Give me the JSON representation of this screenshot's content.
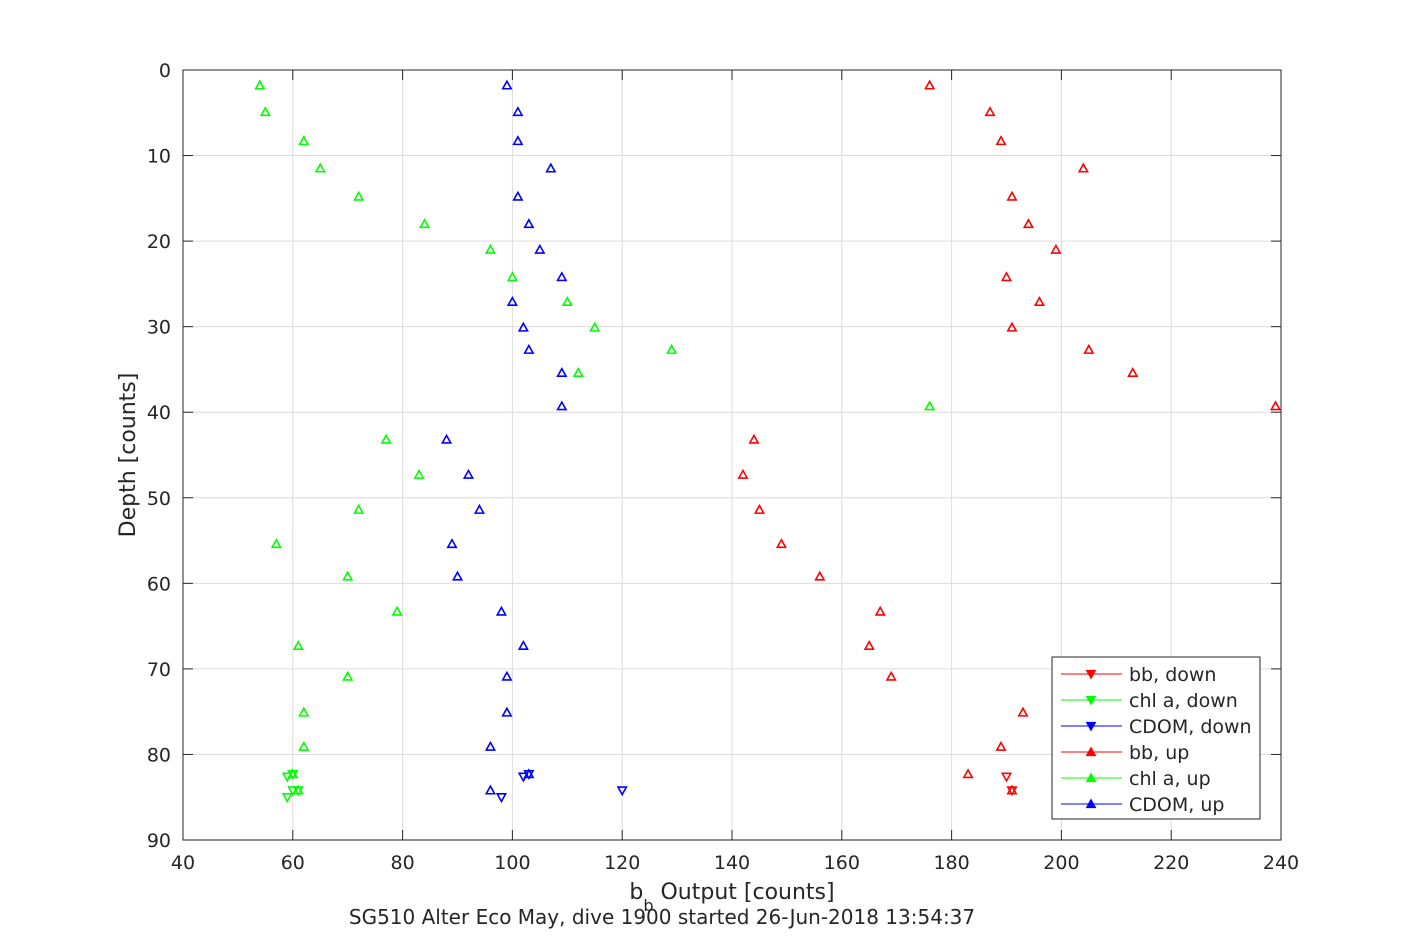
{
  "chart_data": {
    "type": "scatter",
    "title": "SG510 Alter Eco May, dive 1900 started 26-Jun-2018 13:54:37",
    "xlabel": {
      "base": "b",
      "sub": "b",
      "rest": " Output [counts]"
    },
    "ylabel": "Depth [counts]",
    "xlim": [
      40,
      240
    ],
    "ylim": [
      0,
      90
    ],
    "y_reversed": true,
    "xticks": [
      40,
      60,
      80,
      100,
      120,
      140,
      160,
      180,
      200,
      220,
      240
    ],
    "yticks": [
      0,
      10,
      20,
      30,
      40,
      50,
      60,
      70,
      80,
      90
    ],
    "grid": true,
    "legend_position": "bottom-right",
    "series": [
      {
        "name": "bb, down",
        "color": "#ff0000",
        "marker": "triangle-down",
        "points": [
          [
            190,
            82.6
          ],
          [
            191,
            84.2
          ]
        ]
      },
      {
        "name": "chl a, down",
        "color": "#00ff00",
        "marker": "triangle-down",
        "points": [
          [
            59,
            82.6
          ],
          [
            60,
            82.3
          ],
          [
            60,
            84.2
          ],
          [
            61,
            84.2
          ],
          [
            59,
            85.0
          ]
        ]
      },
      {
        "name": "CDOM, down",
        "color": "#0000ff",
        "marker": "triangle-down",
        "points": [
          [
            102,
            82.6
          ],
          [
            103,
            82.3
          ],
          [
            120,
            84.2
          ],
          [
            98,
            85.0
          ]
        ]
      },
      {
        "name": "bb, up",
        "color": "#ff0000",
        "marker": "triangle-up",
        "points": [
          [
            176,
            1.8
          ],
          [
            187,
            4.9
          ],
          [
            189,
            8.3
          ],
          [
            204,
            11.5
          ],
          [
            191,
            14.8
          ],
          [
            194,
            18.0
          ],
          [
            199,
            21.0
          ],
          [
            190,
            24.2
          ],
          [
            196,
            27.1
          ],
          [
            191,
            30.1
          ],
          [
            205,
            32.7
          ],
          [
            213,
            35.4
          ],
          [
            239,
            39.3
          ],
          [
            144,
            43.2
          ],
          [
            142,
            47.3
          ],
          [
            145,
            51.4
          ],
          [
            149,
            55.4
          ],
          [
            156,
            59.2
          ],
          [
            167,
            63.3
          ],
          [
            165,
            67.3
          ],
          [
            169,
            70.9
          ],
          [
            193,
            75.1
          ],
          [
            189,
            79.1
          ],
          [
            183,
            82.3
          ],
          [
            191,
            84.2
          ]
        ]
      },
      {
        "name": "chl a, up",
        "color": "#00ff00",
        "marker": "triangle-up",
        "points": [
          [
            54,
            1.8
          ],
          [
            55,
            4.9
          ],
          [
            62,
            8.3
          ],
          [
            65,
            11.5
          ],
          [
            72,
            14.8
          ],
          [
            84,
            18.0
          ],
          [
            96,
            21.0
          ],
          [
            100,
            24.2
          ],
          [
            110,
            27.1
          ],
          [
            115,
            30.1
          ],
          [
            129,
            32.7
          ],
          [
            112,
            35.4
          ],
          [
            176,
            39.3
          ],
          [
            77,
            43.2
          ],
          [
            83,
            47.3
          ],
          [
            72,
            51.4
          ],
          [
            57,
            55.4
          ],
          [
            70,
            59.2
          ],
          [
            79,
            63.3
          ],
          [
            61,
            67.3
          ],
          [
            70,
            70.9
          ],
          [
            62,
            75.1
          ],
          [
            62,
            79.1
          ],
          [
            60,
            82.3
          ],
          [
            61,
            84.2
          ]
        ]
      },
      {
        "name": "CDOM, up",
        "color": "#0000ff",
        "marker": "triangle-up",
        "points": [
          [
            99,
            1.8
          ],
          [
            101,
            4.9
          ],
          [
            101,
            8.3
          ],
          [
            107,
            11.5
          ],
          [
            101,
            14.8
          ],
          [
            103,
            18.0
          ],
          [
            105,
            21.0
          ],
          [
            109,
            24.2
          ],
          [
            100,
            27.1
          ],
          [
            102,
            30.1
          ],
          [
            103,
            32.7
          ],
          [
            109,
            35.4
          ],
          [
            109,
            39.3
          ],
          [
            88,
            43.2
          ],
          [
            92,
            47.3
          ],
          [
            94,
            51.4
          ],
          [
            89,
            55.4
          ],
          [
            90,
            59.2
          ],
          [
            98,
            63.3
          ],
          [
            102,
            67.3
          ],
          [
            99,
            70.9
          ],
          [
            99,
            75.1
          ],
          [
            96,
            79.1
          ],
          [
            103,
            82.3
          ],
          [
            96,
            84.2
          ]
        ]
      }
    ]
  }
}
